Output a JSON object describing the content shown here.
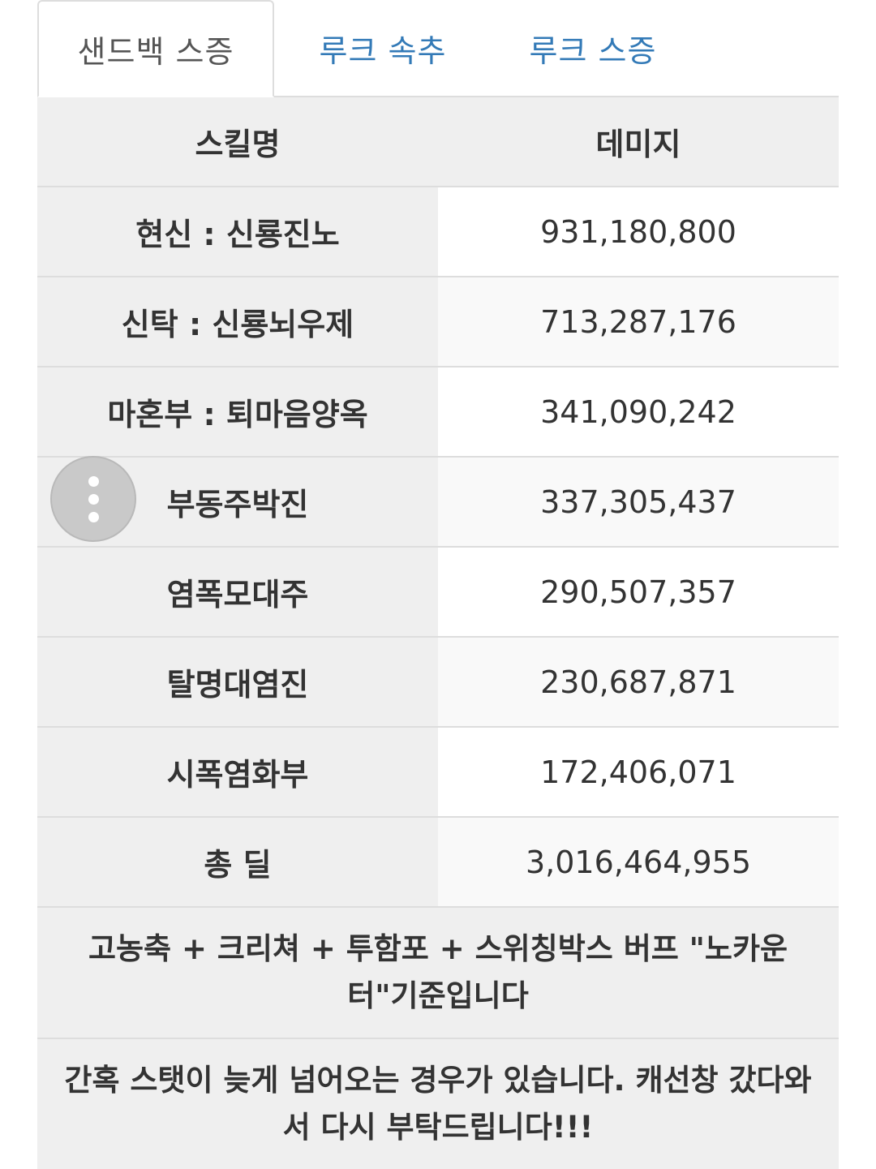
{
  "tabs": [
    {
      "label": "샌드백 스증",
      "active": true
    },
    {
      "label": "루크 속추",
      "active": false
    },
    {
      "label": "루크 스증",
      "active": false
    }
  ],
  "table": {
    "headers": {
      "skill": "스킬명",
      "damage": "데미지"
    },
    "rows": [
      {
        "skill": "현신 : 신룡진노",
        "damage": "931,180,800"
      },
      {
        "skill": "신탁 : 신룡뇌우제",
        "damage": "713,287,176"
      },
      {
        "skill": "마혼부 : 퇴마음양옥",
        "damage": "341,090,242"
      },
      {
        "skill": "부동주박진",
        "damage": "337,305,437"
      },
      {
        "skill": "염폭모대주",
        "damage": "290,507,357"
      },
      {
        "skill": "탈명대염진",
        "damage": "230,687,871"
      },
      {
        "skill": "시폭염화부",
        "damage": "172,406,071"
      },
      {
        "skill": "총 딜",
        "damage": "3,016,464,955"
      }
    ],
    "notes": [
      "고농축 + 크리쳐 + 투함포 + 스위칭박스 버프 \"노카운터\"기준입니다",
      "간혹 스탯이 늦게 넘어오는 경우가 있습니다. 캐선창 갔다와서 다시 부탁드립니다!!!"
    ]
  },
  "colors": {
    "tab_link": "#337ab7",
    "header_bg": "#efefef",
    "border": "#dddddd",
    "fab": "#c9c9c9"
  },
  "icons": {
    "fab": "more-vertical-icon"
  }
}
